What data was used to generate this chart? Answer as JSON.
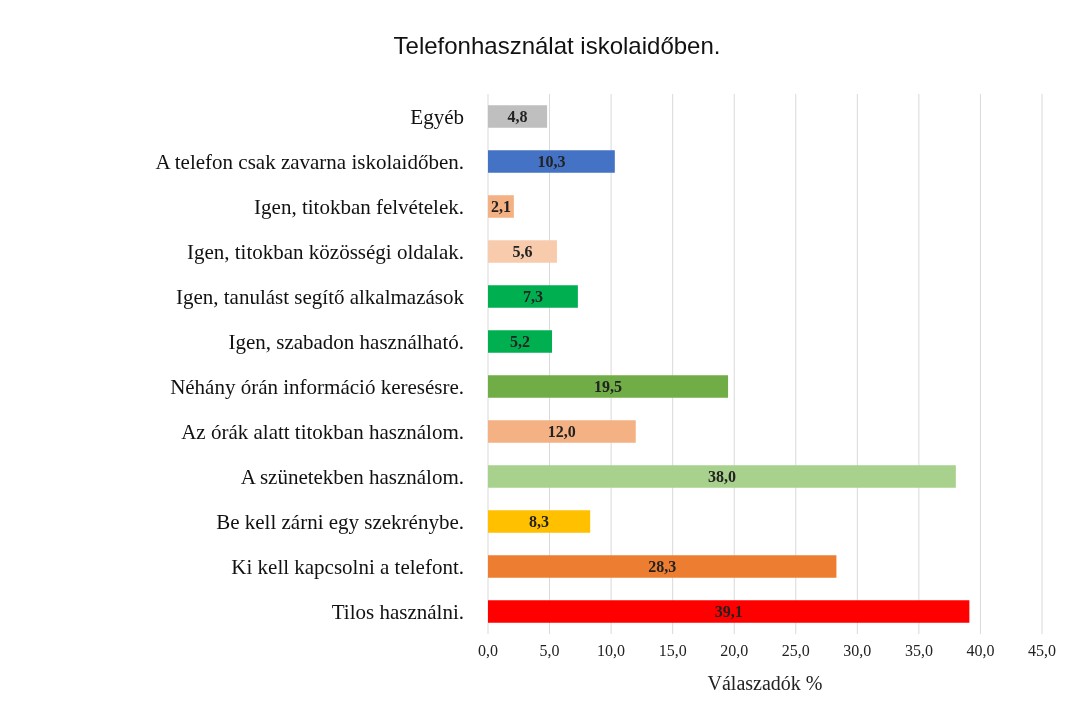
{
  "chart_data": {
    "type": "bar",
    "orientation": "horizontal",
    "title": "Telefonhasználat iskolaidőben.",
    "xlabel": "Válaszadók %",
    "categories": [
      "Egyéb",
      "A telefon csak zavarna iskolaidőben.",
      "Igen, titokban felvételek.",
      "Igen, titokban közösségi oldalak.",
      "Igen, tanulást segítő alkalmazások",
      "Igen, szabadon használható.",
      "Néhány órán információ keresésre.",
      "Az órák alatt titokban használom.",
      "A szünetekben használom.",
      "Be kell zárni egy szekrénybe.",
      "Ki kell kapcsolni a telefont.",
      "Tilos használni."
    ],
    "values": [
      4.8,
      10.3,
      2.1,
      5.6,
      7.3,
      5.2,
      19.5,
      12.0,
      38.0,
      8.3,
      28.3,
      39.1
    ],
    "value_labels": [
      "4,8",
      "10,3",
      "2,1",
      "5,6",
      "7,3",
      "5,2",
      "19,5",
      "12,0",
      "38,0",
      "8,3",
      "28,3",
      "39,1"
    ],
    "colors": [
      "#bfbfbf",
      "#4472c4",
      "#f4b183",
      "#f8cbad",
      "#00b050",
      "#00b050",
      "#70ad47",
      "#f4b183",
      "#a9d18e",
      "#ffc000",
      "#ed7d31",
      "#ff0000"
    ],
    "xlim": [
      0,
      45
    ],
    "xticks": [
      {
        "value": 0,
        "label": "0,0"
      },
      {
        "value": 5,
        "label": "5,0"
      },
      {
        "value": 10,
        "label": "10,0"
      },
      {
        "value": 15,
        "label": "15,0"
      },
      {
        "value": 20,
        "label": "20,0"
      },
      {
        "value": 25,
        "label": "25,0"
      },
      {
        "value": 30,
        "label": "30,0"
      },
      {
        "value": 35,
        "label": "35,0"
      },
      {
        "value": 40,
        "label": "40,0"
      },
      {
        "value": 45,
        "label": "45,0"
      }
    ],
    "grid": "x"
  }
}
